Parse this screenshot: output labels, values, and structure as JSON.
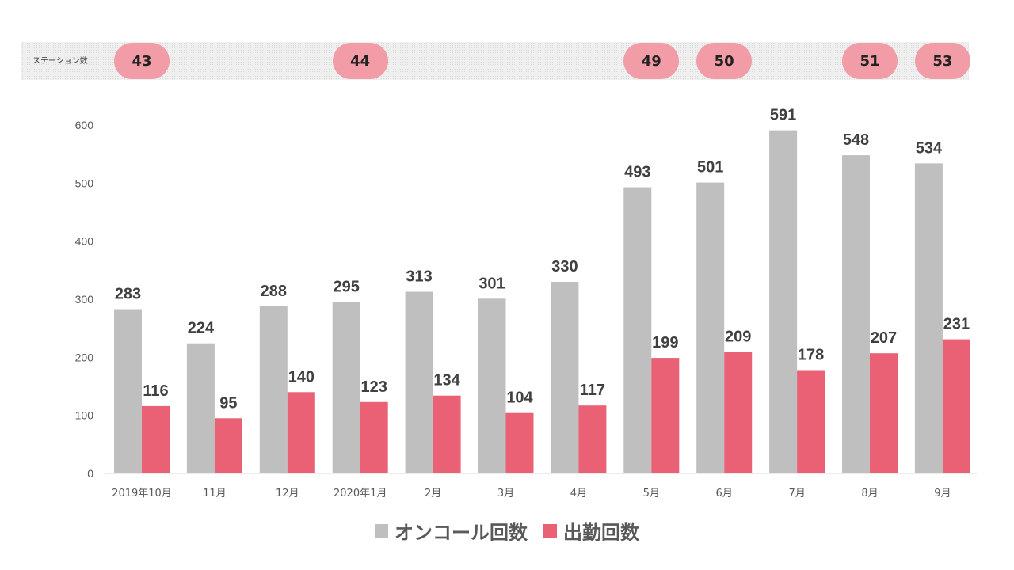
{
  "stations": {
    "label": "ステーション数",
    "values": [
      "43",
      "44",
      "49",
      "50",
      "51",
      "53"
    ],
    "month_index": [
      0,
      3,
      7,
      8,
      10,
      11
    ],
    "pill_color": "#f19ca7"
  },
  "chart_data": {
    "type": "bar",
    "categories": [
      "2019年10月",
      "11月",
      "12月",
      "2020年1月",
      "2月",
      "3月",
      "4月",
      "5月",
      "6月",
      "7月",
      "8月",
      "9月"
    ],
    "series": [
      {
        "name": "オンコール回数",
        "color": "#bfbfbf",
        "values": [
          283,
          224,
          288,
          295,
          313,
          301,
          330,
          493,
          501,
          591,
          548,
          534
        ]
      },
      {
        "name": "出勤回数",
        "color": "#ea6075",
        "values": [
          116,
          95,
          140,
          123,
          134,
          104,
          117,
          199,
          209,
          178,
          207,
          231
        ]
      }
    ],
    "yticks": [
      "0",
      "100",
      "200",
      "300",
      "400",
      "500",
      "600"
    ],
    "ylim": [
      0,
      600
    ],
    "grid": false,
    "legend_position": "bottom"
  }
}
